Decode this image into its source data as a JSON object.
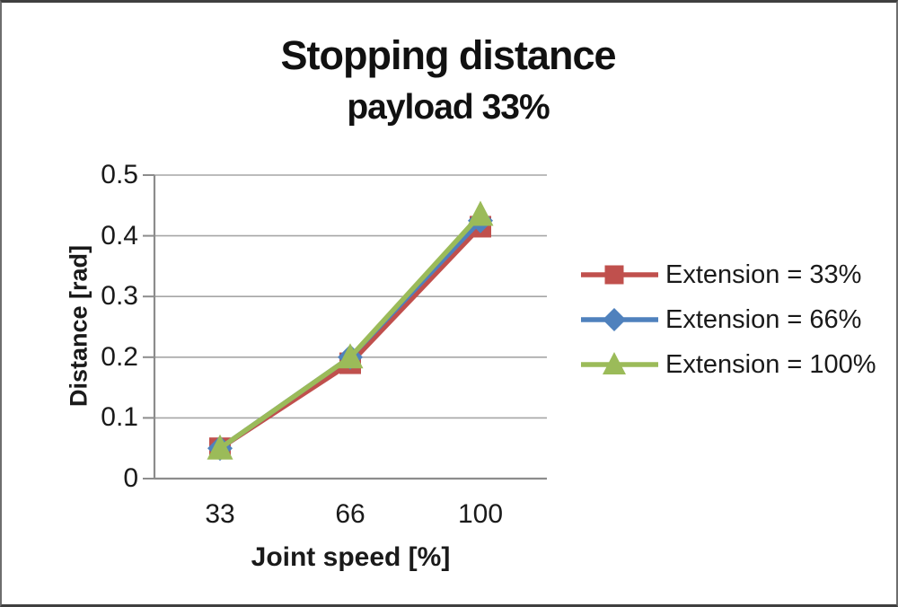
{
  "chart_data": {
    "type": "line",
    "title": "Stopping distance",
    "subtitle": "payload 33%",
    "xlabel": "Joint speed [%]",
    "ylabel": "Distance [rad]",
    "categories": [
      "33",
      "66",
      "100"
    ],
    "series": [
      {
        "name": "Extension = 33%",
        "color": "#C0504D",
        "marker": "square",
        "values": [
          0.05,
          0.19,
          0.415
        ]
      },
      {
        "name": "Extension = 66%",
        "color": "#4F81BD",
        "marker": "diamond",
        "values": [
          0.05,
          0.2,
          0.425
        ]
      },
      {
        "name": "Extension = 100%",
        "color": "#9BBB59",
        "marker": "triangle",
        "values": [
          0.05,
          0.2,
          0.435
        ]
      }
    ],
    "ylim": [
      0,
      0.5
    ],
    "y_ticks": [
      0,
      0.1,
      0.2,
      0.3,
      0.4,
      0.5
    ],
    "y_tick_labels": [
      "0",
      "0.1",
      "0.2",
      "0.3",
      "0.4",
      "0.5"
    ],
    "grid": "horizontal",
    "legend_position": "right"
  },
  "colors": {
    "gridline": "#A6A6A6",
    "axis": "#8C8C8C",
    "text": "#1A1A1A",
    "background": "#FFFFFF",
    "border": "#3F3F3F"
  }
}
